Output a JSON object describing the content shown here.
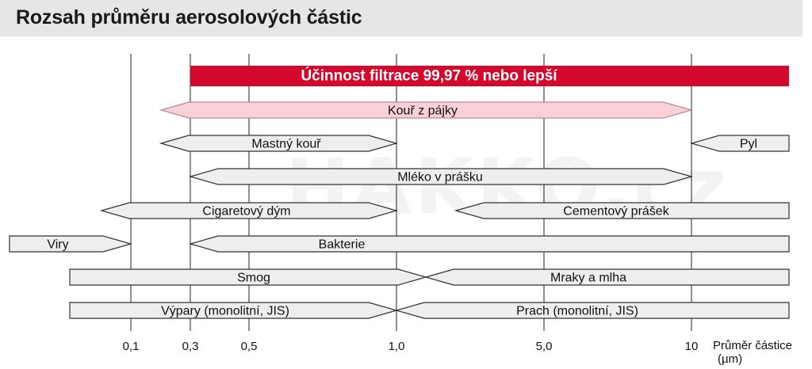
{
  "title": "Rozsah průměru aerosolových částic",
  "watermark": "HAKKO.cz",
  "colors": {
    "grid": "#222222",
    "bar_gray": "#eeeeee",
    "bar_pink": "#fad0d8",
    "bar_red": "#d4082c",
    "outline": "#333333"
  },
  "chart_data": {
    "type": "range",
    "title": "Rozsah průměru aerosolových částic",
    "xlabel": "Průměr částice (µm)",
    "ticks": [
      {
        "value": 0.1,
        "label": "0,1"
      },
      {
        "value": 0.3,
        "label": "0,3"
      },
      {
        "value": 0.5,
        "label": "0,5"
      },
      {
        "value": 1.0,
        "label": "1,0"
      },
      {
        "value": 5.0,
        "label": "5,0"
      },
      {
        "value": 10,
        "label": "10"
      }
    ],
    "ranges": [
      {
        "label": "Účinnost filtrace 99,97 % nebo lepší",
        "from": 0.3,
        "to": 20,
        "start": "flat",
        "end": "flat",
        "style": "red"
      },
      {
        "label": "Kouř z pájky",
        "from": 0.2,
        "to": 10,
        "start": "arrow",
        "end": "arrow",
        "style": "pink"
      },
      {
        "label": "Mastný kouř",
        "from": 0.2,
        "to": 1.0,
        "start": "arrow",
        "end": "arrow",
        "style": "gray"
      },
      {
        "label": "Pyl",
        "from": 10,
        "to": 20,
        "start": "arrow",
        "end": "flat",
        "style": "gray"
      },
      {
        "label": "Mléko v prášku",
        "from": 0.3,
        "to": 10,
        "start": "arrow",
        "end": "arrow",
        "style": "gray"
      },
      {
        "label": "Cigaretový dým",
        "from": 0.01,
        "to": 1.0,
        "start": "arrow",
        "end": "arrow",
        "style": "gray"
      },
      {
        "label": "Cementový prášek",
        "from": 1.5,
        "to": 20,
        "start": "arrow",
        "end": "flat",
        "style": "gray"
      },
      {
        "label": "Viry",
        "from": 0.005,
        "to": 0.1,
        "start": "flat",
        "end": "arrow",
        "style": "gray"
      },
      {
        "label": "Bakterie",
        "from": 0.3,
        "to": 20,
        "start": "arrow",
        "end": "flat",
        "style": "gray"
      },
      {
        "label": "Smog",
        "from": 0.001,
        "to": 1.2,
        "start": "flat",
        "end": "arrow",
        "style": "gray"
      },
      {
        "label": "Mraky a mlha",
        "from": 1.2,
        "to": 20,
        "start": "arrow",
        "end": "flat",
        "style": "gray"
      },
      {
        "label": "Výpary (monolitní, JIS)",
        "from": 0.001,
        "to": 1.0,
        "start": "flat",
        "end": "arrow",
        "style": "gray"
      },
      {
        "label": "Prach (monolitní, JIS)",
        "from": 1.0,
        "to": 20,
        "start": "arrow",
        "end": "flat",
        "style": "gray"
      }
    ]
  }
}
